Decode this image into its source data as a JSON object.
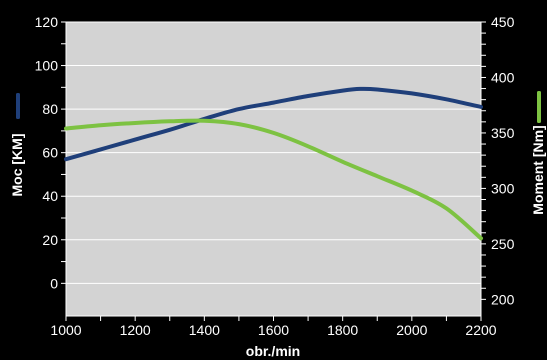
{
  "chart_data": {
    "type": "line",
    "title": "",
    "xlabel": "obr./min",
    "ylabel_left": "Moc [KM]",
    "ylabel_right": "Moment [Nm]",
    "xlim": [
      1000,
      2200
    ],
    "ylim_left": [
      -15,
      120
    ],
    "ylim_right": [
      185,
      450
    ],
    "x_ticks": [
      "1000",
      "1200",
      "1400",
      "1600",
      "1800",
      "2000",
      "2200"
    ],
    "y_left_ticks": [
      "0",
      "20",
      "40",
      "60",
      "80",
      "100",
      "120"
    ],
    "y_right_ticks": [
      "200",
      "250",
      "300",
      "350",
      "400",
      "450"
    ],
    "grid": true,
    "background": "#d3d3d3",
    "series": [
      {
        "name": "Moc [KM]",
        "axis": "left",
        "color": "#1f3f7a",
        "x": [
          1000,
          1100,
          1200,
          1300,
          1400,
          1500,
          1600,
          1700,
          1800,
          1850,
          1900,
          2000,
          2100,
          2200
        ],
        "values": [
          57,
          61.5,
          66,
          70.5,
          75.5,
          80,
          83,
          86,
          88.5,
          89.3,
          89,
          87.2,
          84.5,
          81
        ]
      },
      {
        "name": "Moment [Nm]",
        "axis": "right",
        "color": "#7dc242",
        "x": [
          1000,
          1100,
          1200,
          1300,
          1400,
          1500,
          1600,
          1700,
          1800,
          1900,
          2000,
          2100,
          2200
        ],
        "values": [
          354,
          357,
          359,
          360.5,
          361,
          358,
          350,
          338,
          324,
          311,
          298,
          282,
          255
        ]
      }
    ]
  }
}
